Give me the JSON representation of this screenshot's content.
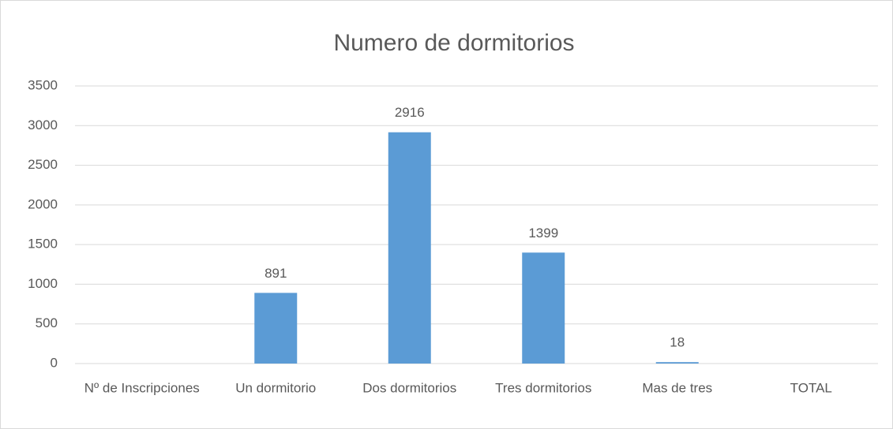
{
  "chart_data": {
    "type": "bar",
    "title": "Numero de dormitorios",
    "categories": [
      "Nº de Inscripciones",
      "Un dormitorio",
      "Dos dormitorios",
      "Tres dormitorios",
      "Mas de tres",
      "TOTAL"
    ],
    "values": [
      null,
      891,
      2916,
      1399,
      18,
      null
    ],
    "color": "#5b9bd5",
    "ylim": [
      0,
      3500
    ],
    "yticks": [
      0,
      500,
      1000,
      1500,
      2000,
      2500,
      3000,
      3500
    ],
    "grid": true
  }
}
